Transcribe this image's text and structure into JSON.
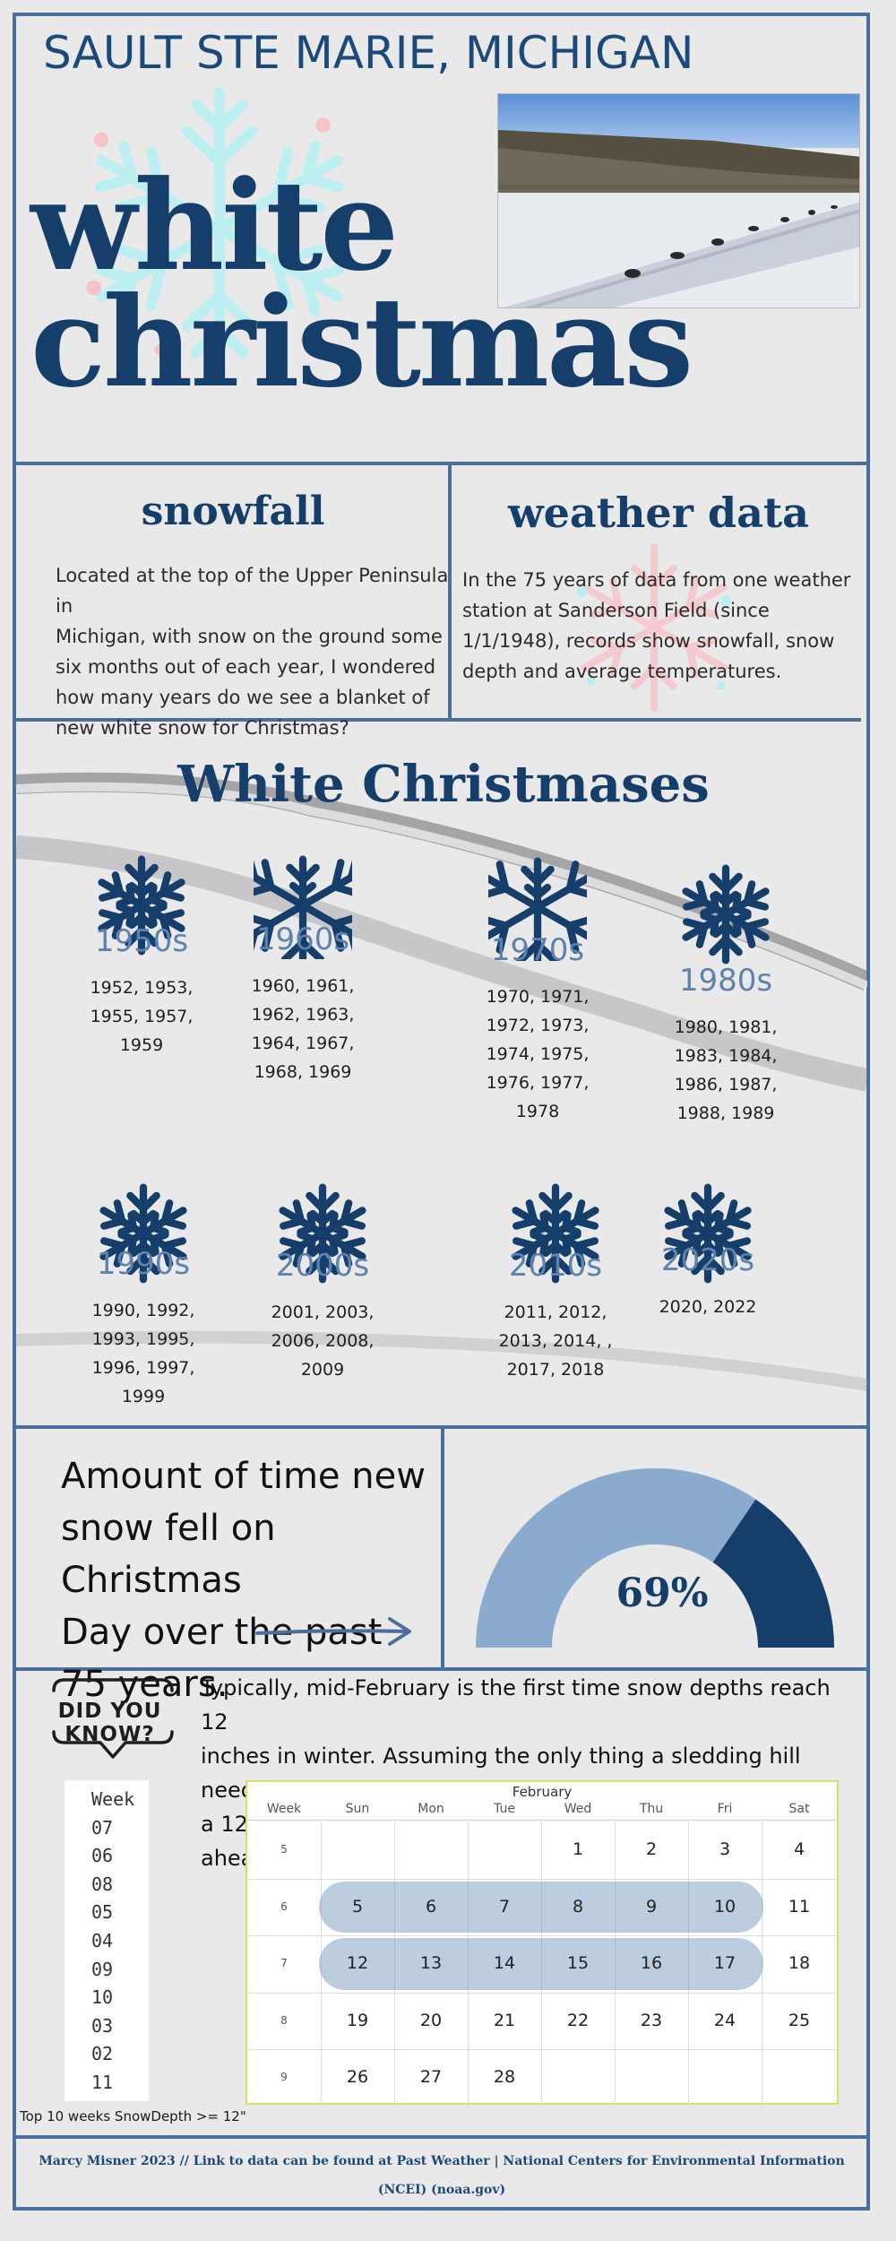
{
  "header": {
    "place": "SAULT STE MARIE, MICHIGAN",
    "title_line1": "white",
    "title_line2": "christmas"
  },
  "snowfall": {
    "heading": "snowfall",
    "lines": [
      "Located at the top of the Upper Peninsula in",
      "Michigan, with snow on the ground some",
      "six months out of each year, I wondered",
      "how many years do we see a blanket of",
      "new white snow for Christmas?"
    ]
  },
  "weather_data": {
    "heading": "weather data",
    "lines": [
      "In the 75 years of data from one weather",
      "station at Sanderson Field (since",
      "1/1/1948), records show snowfall, snow",
      "depth and average temperatures."
    ]
  },
  "white_christmases": {
    "heading": "White Christmases",
    "decades": [
      {
        "label": "1950s",
        "lines": [
          "1952, 1953,",
          "1955, 1957,",
          "1959"
        ]
      },
      {
        "label": "1960s",
        "lines": [
          "1960, 1961,",
          "1962, 1963,",
          "1964, 1967,",
          "1968, 1969"
        ]
      },
      {
        "label": "1970s",
        "lines": [
          "1970, 1971,",
          "1972, 1973,",
          "1974, 1975,",
          "1976, 1977,",
          "1978"
        ]
      },
      {
        "label": "1980s",
        "lines": [
          "1980, 1981,",
          "1983, 1984,",
          "1986, 1987,",
          "1988, 1989"
        ]
      },
      {
        "label": "1990s",
        "lines": [
          "1990, 1992,",
          "1993, 1995,",
          "1996, 1997,",
          "1999"
        ]
      },
      {
        "label": "2000s",
        "lines": [
          "2001, 2003,",
          "2006, 2008,",
          "2009"
        ]
      },
      {
        "label": "2010s",
        "lines": [
          "2011, 2012,",
          "2013, 2014, ,",
          "2017, 2018"
        ]
      },
      {
        "label": "2020s",
        "lines": [
          "2020, 2022"
        ]
      }
    ]
  },
  "stat": {
    "lines": [
      "Amount of time new",
      "snow fell on Christmas",
      "Day over the past",
      "75 years."
    ],
    "percent_label": "69%",
    "fraction": 0.69
  },
  "did_you_know": {
    "badge": "DID YOU KNOW?",
    "lines": [
      "Typically, mid-February is the first time snow depths reach 12",
      "inches in winter. Assuming the only thing a sledding hill needs is",
      "a 12-inch base to open, this offers an opportunity to plan ahead."
    ]
  },
  "weeks": {
    "header": "Week",
    "items": [
      "07",
      "06",
      "08",
      "05",
      "04",
      "09",
      "10",
      "03",
      "02",
      "11"
    ],
    "caption": "Top 10 weeks SnowDepth >= 12\""
  },
  "calendar": {
    "month": "February",
    "columns": [
      "Week",
      "Sun",
      "Mon",
      "Tue",
      "Wed",
      "Thu",
      "Fri",
      "Sat"
    ],
    "rows": [
      {
        "week": "5",
        "days": [
          "",
          "",
          "",
          "1",
          "2",
          "3",
          "4"
        ]
      },
      {
        "week": "6",
        "days": [
          "5",
          "6",
          "7",
          "8",
          "9",
          "10",
          "11"
        ]
      },
      {
        "week": "7",
        "days": [
          "12",
          "13",
          "14",
          "15",
          "16",
          "17",
          "18"
        ]
      },
      {
        "week": "8",
        "days": [
          "19",
          "20",
          "21",
          "22",
          "23",
          "24",
          "25"
        ]
      },
      {
        "week": "9",
        "days": [
          "26",
          "27",
          "28",
          "",
          "",
          "",
          ""
        ]
      }
    ]
  },
  "footer": {
    "line1": "Marcy Misner 2023 //  Link to data can be found  at Past Weather | National Centers for Environmental Information",
    "line2": "(NCEI) (noaa.gov)"
  },
  "colors": {
    "navy": "#153e6b",
    "border": "#4a6f9c",
    "light_blue": "#8aabcd",
    "decade_label": "#5d82ad"
  }
}
